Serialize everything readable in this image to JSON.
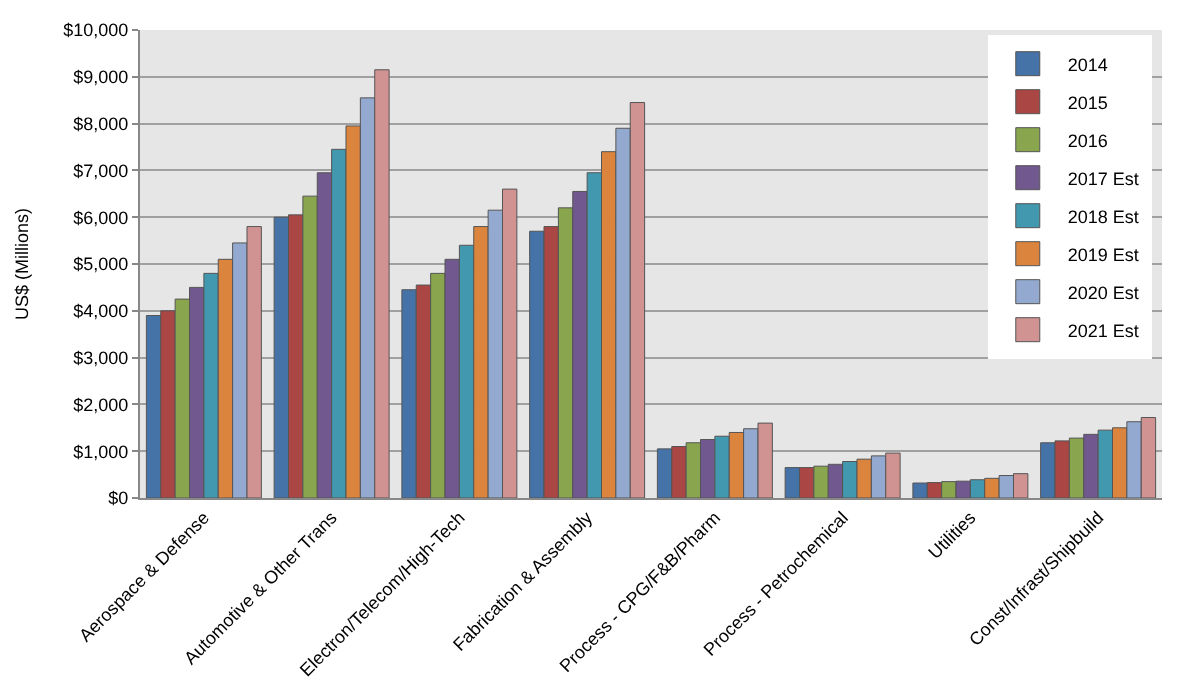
{
  "chart_data": {
    "type": "bar",
    "ylabel": "US$ (Millions)",
    "categories": [
      "Aerospace & Defense",
      "Automotive & Other Trans",
      "Electron/Telecom/High-Tech",
      "Fabrication & Assembly",
      "Process - CPG/F&B/Pharm",
      "Process - Petrochemical",
      "Utilities",
      "Const/Infrast/Shipbuild"
    ],
    "series": [
      {
        "name": "2014",
        "color": "#4572a7",
        "values": [
          3900,
          6000,
          4450,
          5700,
          1050,
          650,
          320,
          1180
        ]
      },
      {
        "name": "2015",
        "color": "#aa4643",
        "values": [
          4000,
          6050,
          4550,
          5800,
          1100,
          650,
          330,
          1220
        ]
      },
      {
        "name": "2016",
        "color": "#89a54e",
        "values": [
          4250,
          6450,
          4800,
          6200,
          1180,
          680,
          350,
          1280
        ]
      },
      {
        "name": "2017 Est",
        "color": "#71588f",
        "values": [
          4500,
          6950,
          5100,
          6550,
          1250,
          720,
          360,
          1360
        ]
      },
      {
        "name": "2018 Est",
        "color": "#4198af",
        "values": [
          4800,
          7450,
          5400,
          6950,
          1320,
          780,
          390,
          1450
        ]
      },
      {
        "name": "2019 Est",
        "color": "#db843d",
        "values": [
          5100,
          7950,
          5800,
          7400,
          1400,
          830,
          420,
          1500
        ]
      },
      {
        "name": "2020 Est",
        "color": "#93a9cf",
        "values": [
          5450,
          8550,
          6150,
          7900,
          1480,
          900,
          480,
          1630
        ]
      },
      {
        "name": "2021 Est",
        "color": "#d19392",
        "values": [
          5800,
          9150,
          6600,
          8450,
          1600,
          960,
          520,
          1720
        ]
      }
    ],
    "ylim": [
      0,
      10000
    ],
    "yticks": [
      {
        "value": 0,
        "label": "$0"
      },
      {
        "value": 1000,
        "label": "$1,000"
      },
      {
        "value": 2000,
        "label": "$2,000"
      },
      {
        "value": 3000,
        "label": "$3,000"
      },
      {
        "value": 4000,
        "label": "$4,000"
      },
      {
        "value": 5000,
        "label": "$5,000"
      },
      {
        "value": 6000,
        "label": "$6,000"
      },
      {
        "value": 7000,
        "label": "$7,000"
      },
      {
        "value": 8000,
        "label": "$8,000"
      },
      {
        "value": 9000,
        "label": "$9,000"
      },
      {
        "value": 10000,
        "label": "$10,000"
      }
    ],
    "grid": "y",
    "legend": "top right"
  }
}
